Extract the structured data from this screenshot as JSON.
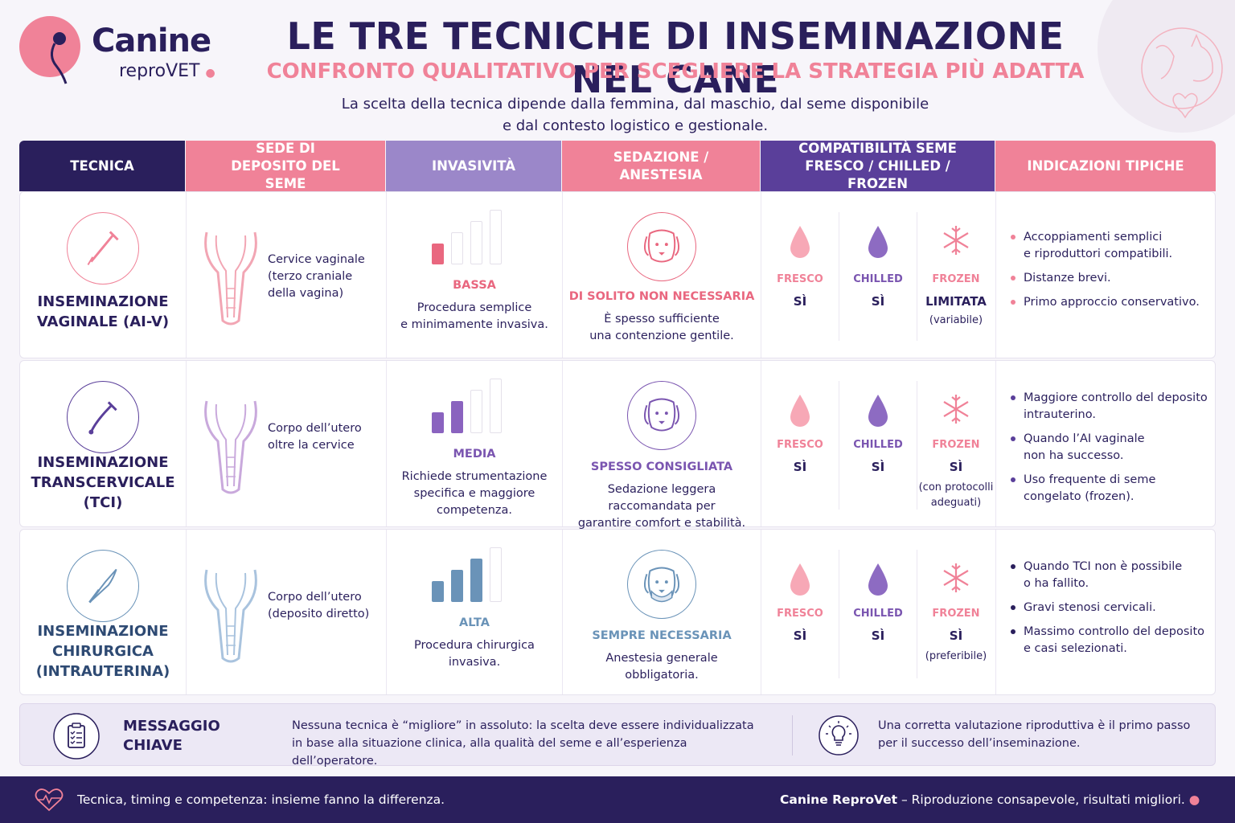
{
  "brand": {
    "name": "Canine",
    "sub": "reproVET",
    "accent": "#f08298",
    "dark": "#2a1f5c"
  },
  "title": "LE TRE TECNICHE DI INSEMINAZIONE NEL CANE",
  "subtitle": "CONFRONTO QUALITATIVO PER SCEGLIERE LA STRATEGIA PIÙ ADATTA",
  "intro": [
    "La scelta della tecnica dipende dalla femmina, dal maschio, dal seme disponibile",
    "e dal contesto logistico e gestionale."
  ],
  "headers": [
    "TECNICA",
    "SEDE DI DEPOSITO DEL SEME",
    "INVASIVITÀ",
    "SEDAZIONE / ANESTESIA",
    "COMPATIBILITÀ SEME FRESCO / CHILLED / FROZEN",
    "INDICAZIONI TIPICHE"
  ],
  "header_colors": [
    "#2a1f5c",
    "#f08298",
    "#9b87c9",
    "#f08298",
    "#5a3f9a",
    "#f08298"
  ],
  "semen_labels": {
    "fresh": "FRESCO",
    "chilled": "CHILLED",
    "frozen": "FROZEN"
  },
  "rows": [
    {
      "tech": [
        "INSEMINAZIONE",
        "VAGINALE (AI-V)"
      ],
      "color": "#2a1f5c",
      "icon": "pipette-icon",
      "site": [
        "Cervice vaginale",
        "(terzo craniale",
        "della vagina)"
      ],
      "invasiveness": {
        "label": "BASSA",
        "level": 1,
        "desc": [
          "Procedura semplice",
          "e minimamente invasiva."
        ]
      },
      "sedation": {
        "label": "DI SOLITO NON NECESSARIA",
        "desc": [
          "È spesso sufficiente",
          "una contenzione gentile."
        ]
      },
      "semen": {
        "fresh": "SÌ",
        "chilled": "SÌ",
        "frozen": "LIMITATA",
        "frozen_note": "(variabile)"
      },
      "indications": [
        [
          "Accoppiamenti semplici",
          "e riproduttori compatibili."
        ],
        [
          "Distanze brevi."
        ],
        [
          "Primo approccio conservativo."
        ]
      ]
    },
    {
      "tech": [
        "INSEMINAZIONE",
        "TRANSCERVICALE",
        "(TCI)"
      ],
      "color": "#2a1f5c",
      "icon": "endoscope-icon",
      "site": [
        "Corpo dell’utero",
        "oltre la cervice"
      ],
      "invasiveness": {
        "label": "MEDIA",
        "level": 2,
        "desc": [
          "Richiede strumentazione",
          "specifica e maggiore",
          "competenza."
        ]
      },
      "sedation": {
        "label": "SPESSO CONSIGLIATA",
        "desc": [
          "Sedazione leggera",
          "raccomandata per",
          "garantire comfort e stabilità."
        ]
      },
      "semen": {
        "fresh": "SÌ",
        "chilled": "SÌ",
        "frozen": "SÌ",
        "frozen_note": "(con protocolli adeguati)"
      },
      "indications": [
        [
          "Maggiore controllo del deposito",
          "intrauterino."
        ],
        [
          "Quando l’AI vaginale",
          "non ha successo."
        ],
        [
          "Uso frequente di seme",
          "congelato (frozen)."
        ]
      ]
    },
    {
      "tech": [
        "INSEMINAZIONE",
        "CHIRURGICA",
        "(INTRAUTERINA)"
      ],
      "color": "#2e4a73",
      "icon": "scalpel-icon",
      "site": [
        "Corpo dell’utero",
        "(deposito diretto)"
      ],
      "invasiveness": {
        "label": "ALTA",
        "level": 3,
        "desc": [
          "Procedura chirurgica",
          "invasiva."
        ]
      },
      "sedation": {
        "label": "SEMPRE NECESSARIA",
        "desc": [
          "Anestesia generale",
          "obbligatoria."
        ]
      },
      "semen": {
        "fresh": "SÌ",
        "chilled": "SÌ",
        "frozen": "SÌ",
        "frozen_note": "(preferibile)"
      },
      "indications": [
        [
          "Quando TCI non è possibile",
          "o ha fallito."
        ],
        [
          "Gravi stenosi cervicali."
        ],
        [
          "Massimo controllo del deposito",
          "e casi selezionati."
        ]
      ]
    }
  ],
  "key": {
    "title": [
      "MESSAGGIO",
      "CHIAVE"
    ],
    "text": [
      "Nessuna tecnica è “migliore” in assoluto: la scelta deve essere individualizzata",
      "in base alla situazione clinica, alla qualità del seme e all’esperienza dell’operatore."
    ],
    "text2": [
      "Una corretta valutazione riproduttiva è il primo passo",
      "per il successo dell’inseminazione."
    ]
  },
  "footer": {
    "left": "Tecnica, timing e competenza: insieme fanno la differenza.",
    "right_brand": "Canine ReproVet",
    "right_text": " – Riproduzione consapevole, risultati migliori."
  }
}
